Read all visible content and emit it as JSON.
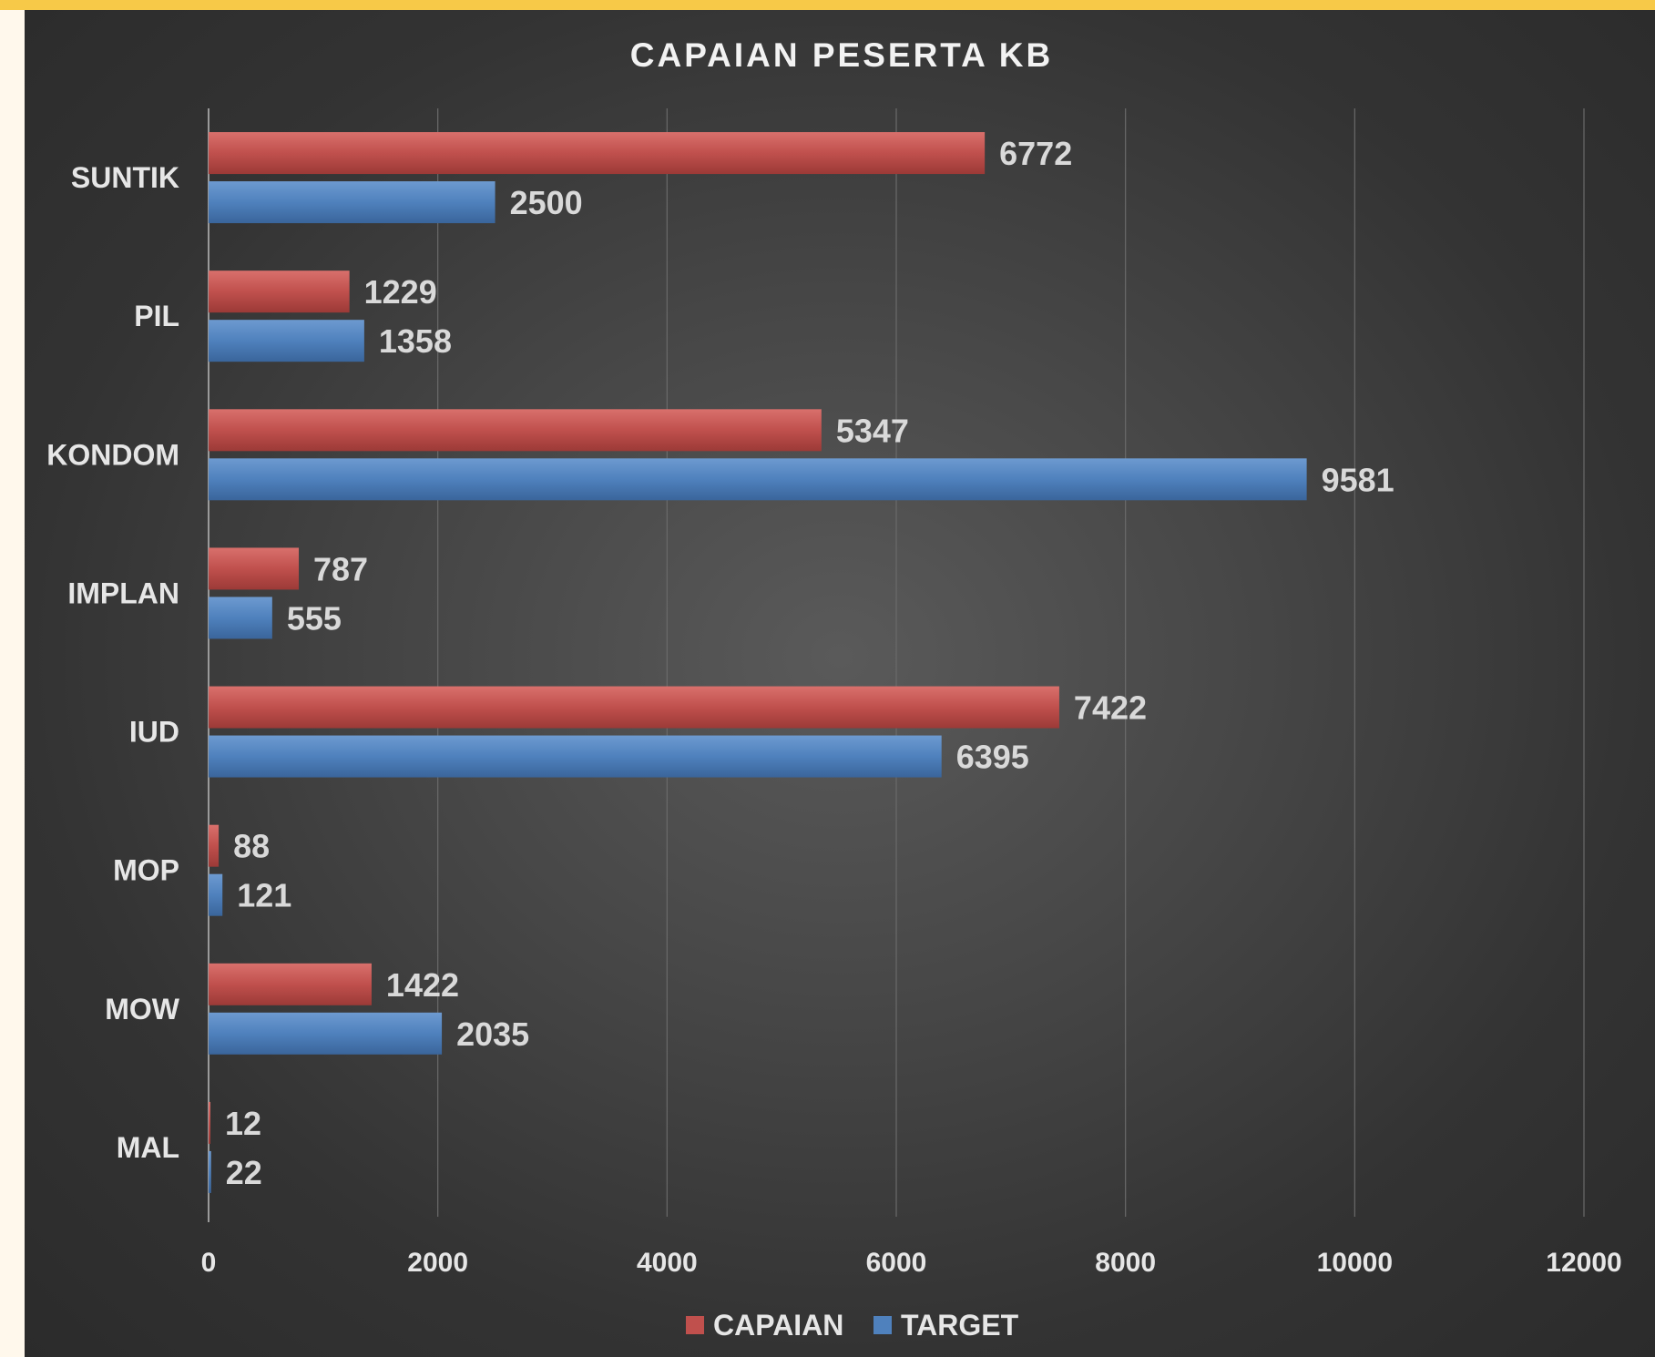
{
  "chart_data": {
    "type": "bar",
    "orientation": "horizontal",
    "title": "CAPAIAN PESERTA KB",
    "categories": [
      "SUNTIK",
      "PIL",
      "KONDOM",
      "IMPLAN",
      "IUD",
      "MOP",
      "MOW",
      "MAL"
    ],
    "series": [
      {
        "name": "CAPAIAN",
        "color": "#c0504d",
        "values": [
          6772,
          1229,
          5347,
          787,
          7422,
          88,
          1422,
          12
        ]
      },
      {
        "name": "TARGET",
        "color": "#4f81bd",
        "values": [
          2500,
          1358,
          9581,
          555,
          6395,
          121,
          2035,
          22
        ]
      }
    ],
    "xlim": [
      0,
      12000
    ],
    "xticks": [
      0,
      2000,
      4000,
      6000,
      8000,
      10000,
      12000
    ],
    "grid": true,
    "legend": "bottom",
    "data_labels": true
  }
}
